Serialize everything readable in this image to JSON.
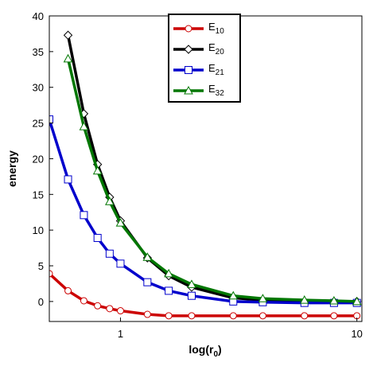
{
  "chart_data": {
    "type": "line",
    "x_label": "log(r0)",
    "y_label": "energy",
    "log_x": true,
    "x": [
      0.5,
      0.6,
      0.7,
      0.8,
      0.9,
      1.0,
      1.3,
      1.6,
      2,
      3,
      4,
      6,
      8,
      10
    ],
    "series": [
      {
        "name": "E10",
        "color": "#cc0000",
        "marker": "circle",
        "values": [
          3.9,
          1.5,
          0.1,
          -0.6,
          -1.0,
          -1.3,
          -1.8,
          -2.0,
          -2.0,
          -2.0,
          -2.0,
          -2.0,
          -2.0,
          -2.0
        ]
      },
      {
        "name": "E20",
        "color": "#000000",
        "marker": "diamond",
        "values": [
          null,
          37.3,
          26.3,
          19.2,
          14.6,
          11.3,
          6.1,
          3.6,
          2.0,
          0.5,
          0.2,
          0.0,
          0.0,
          0.0
        ]
      },
      {
        "name": "E21",
        "color": "#0000cc",
        "marker": "square",
        "values": [
          25.5,
          17.1,
          12.1,
          8.9,
          6.7,
          5.3,
          2.7,
          1.5,
          0.8,
          0.0,
          -0.1,
          -0.2,
          -0.2,
          -0.2
        ]
      },
      {
        "name": "E32",
        "color": "#007700",
        "marker": "triangle",
        "values": [
          null,
          34.0,
          24.5,
          18.3,
          14.0,
          11.0,
          6.2,
          3.9,
          2.4,
          0.8,
          0.4,
          0.2,
          0.1,
          0.0
        ]
      }
    ],
    "xlim": [
      0.5,
      10.5
    ],
    "ylim": [
      -2.8,
      40
    ],
    "xticks": [
      1,
      10
    ],
    "yticks": [
      0,
      5,
      10,
      15,
      20,
      25,
      30,
      35,
      40
    ]
  }
}
